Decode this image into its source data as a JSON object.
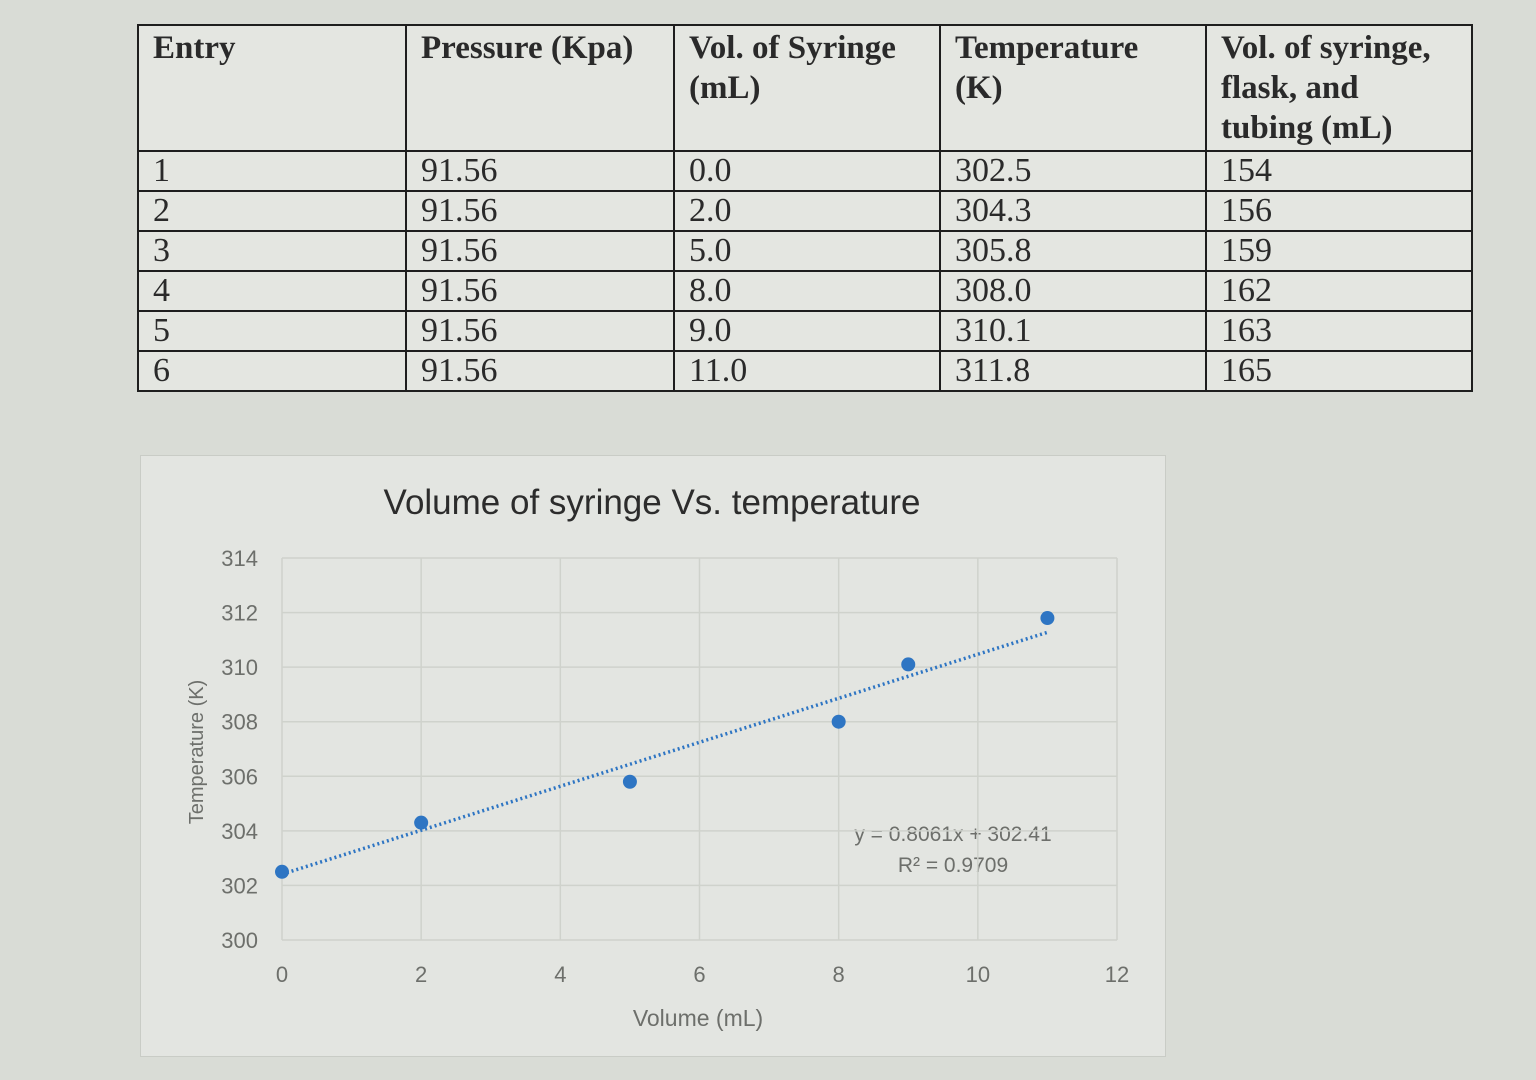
{
  "table": {
    "headers": [
      "Entry",
      "Pressure (Kpa)",
      "Vol. of Syringe (mL)",
      "Temperature (K)",
      "Vol. of syringe, flask, and tubing (mL)"
    ],
    "rows": [
      [
        "1",
        "91.56",
        "0.0",
        "302.5",
        "154"
      ],
      [
        "2",
        "91.56",
        "2.0",
        "304.3",
        "156"
      ],
      [
        "3",
        "91.56",
        "5.0",
        "305.8",
        "159"
      ],
      [
        "4",
        "91.56",
        "8.0",
        "308.0",
        "162"
      ],
      [
        "5",
        "91.56",
        "9.0",
        "310.1",
        "163"
      ],
      [
        "6",
        "91.56",
        "11.0",
        "311.8",
        "165"
      ]
    ]
  },
  "chart_data": {
    "type": "scatter",
    "title": "Volume of syringe Vs. temperature",
    "xlabel": "Volume (mL)",
    "ylabel": "Temperature (K)",
    "xlim": [
      0,
      12
    ],
    "ylim": [
      300,
      314
    ],
    "xticks": [
      0,
      2,
      4,
      6,
      8,
      10,
      12
    ],
    "yticks": [
      300,
      302,
      304,
      306,
      308,
      310,
      312,
      314
    ],
    "grid": true,
    "points": [
      {
        "x": 0,
        "y": 302.5
      },
      {
        "x": 2,
        "y": 304.3
      },
      {
        "x": 5,
        "y": 305.8
      },
      {
        "x": 8,
        "y": 308.0
      },
      {
        "x": 9,
        "y": 310.1
      },
      {
        "x": 11,
        "y": 311.8
      }
    ],
    "trendline": {
      "slope": 0.8061,
      "intercept": 302.41,
      "style": "dotted"
    },
    "annotations": [
      "y = 0.8061x + 302.41",
      "R² = 0.9709"
    ],
    "colors": {
      "marker": "#2e75c3",
      "trendline": "#2e75c3",
      "grid": "#cfd2cc",
      "text": "#6d6f6b"
    }
  }
}
